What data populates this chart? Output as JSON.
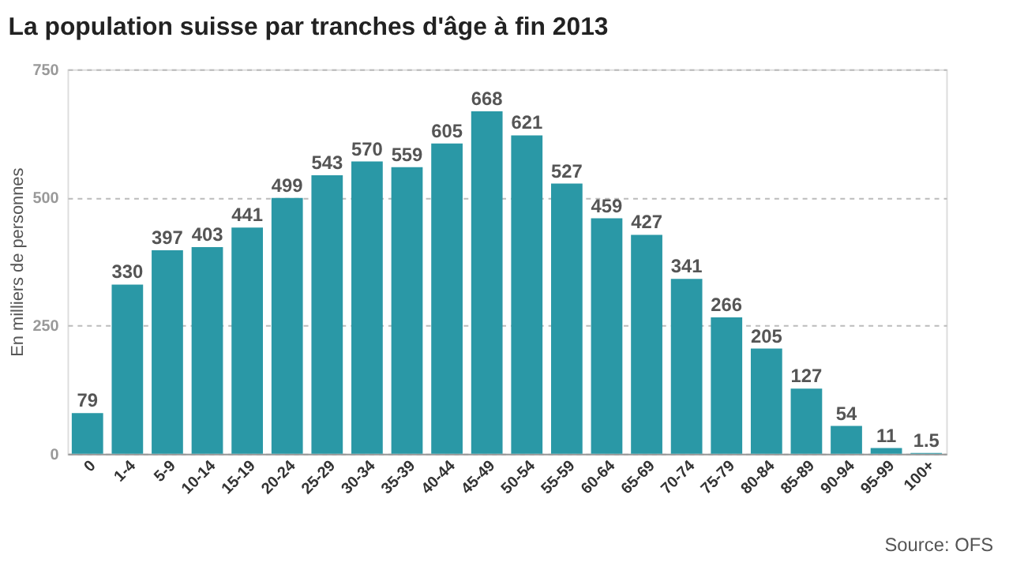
{
  "chart_data": {
    "type": "bar",
    "title": "La population suisse par tranches d'âge à fin 2013",
    "ylabel": "En milliers de personnes",
    "categories": [
      "0",
      "1-4",
      "5-9",
      "10-14",
      "15-19",
      "20-24",
      "25-29",
      "30-34",
      "35-39",
      "40-44",
      "45-49",
      "50-54",
      "55-59",
      "60-64",
      "65-69",
      "70-74",
      "75-79",
      "80-84",
      "85-89",
      "90-94",
      "95-99",
      "100+"
    ],
    "values": [
      79,
      330,
      397,
      403,
      441,
      499,
      543,
      570,
      559,
      605,
      668,
      621,
      527,
      459,
      427,
      341,
      266,
      205,
      127,
      54,
      11,
      1.5
    ],
    "color": "#2a98a6",
    "ylim": [
      0,
      750
    ],
    "yticks": [
      0,
      250,
      500,
      750
    ],
    "grid": "y",
    "data_labels": true,
    "annotations": [
      "Source: OFS"
    ]
  }
}
